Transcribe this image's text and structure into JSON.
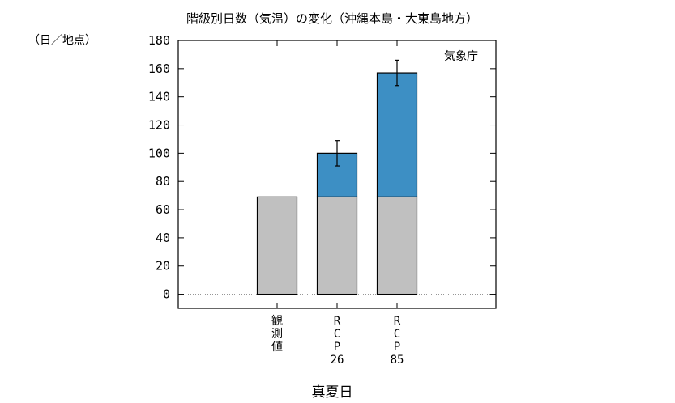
{
  "chart_data": {
    "type": "bar",
    "stacked": true,
    "title": "階級別日数（気温）の変化（沖縄本島・大東島地方）",
    "ylabel": "（日／地点）",
    "xlabel": "真夏日",
    "source_label": "気象庁",
    "ylim": [
      -10,
      180
    ],
    "yticks": [
      0,
      20,
      40,
      60,
      80,
      100,
      120,
      140,
      160,
      180
    ],
    "categories": [
      "観測値",
      "RCP26",
      "RCP85"
    ],
    "category_labels": [
      [
        "観",
        "測",
        "値"
      ],
      [
        "R",
        "C",
        "P",
        "26"
      ],
      [
        "R",
        "C",
        "P",
        "85"
      ]
    ],
    "series": [
      {
        "values": [
          69,
          69,
          69
        ],
        "color": "#c0c0c0"
      },
      {
        "values": [
          0,
          31,
          88
        ],
        "color": "#3d8fc4"
      },
      {
        "values": [
          0,
          0,
          0
        ],
        "color": "#d9624d"
      }
    ],
    "bar_colors_top": [
      "#c0c0c0",
      "#3d8fc4",
      "#d9624d"
    ],
    "error_bars": [
      null,
      {
        "low": 91,
        "high": 109
      },
      {
        "low": 148,
        "high": 166
      }
    ],
    "zero_line": "dotted"
  }
}
